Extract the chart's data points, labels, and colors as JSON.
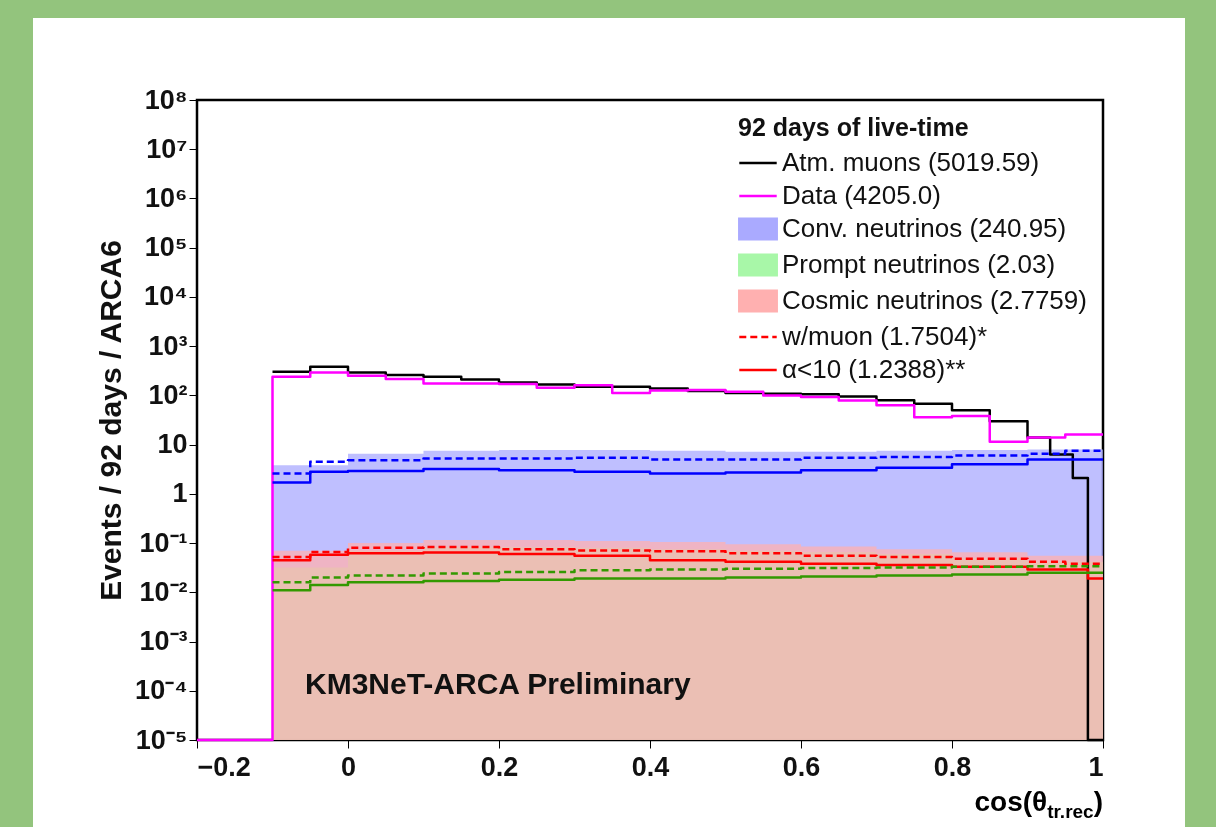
{
  "chart_data": {
    "type": "step",
    "ylabel": "Events /  92 days  / ARCA6",
    "xlabel": "cos(θ$_{tr.rec}$)",
    "legend_title": "92 days of live-time",
    "legend": "top right",
    "log": true,
    "xlim": [
      -0.2,
      1
    ],
    "xticks": [
      {
        "value": -0.2,
        "label": "−0.2"
      },
      0,
      0.2,
      0.4,
      0.6,
      0.8,
      1
    ],
    "ylim": [
      1e-05,
      100000000
    ],
    "yticks": [
      {
        "value": 1e-05,
        "label": "10⁻⁵"
      },
      {
        "value": 0.0001,
        "label": "10⁻⁴"
      },
      {
        "value": 0.001,
        "label": "10⁻³"
      },
      {
        "value": 0.01,
        "label": "10⁻²"
      },
      {
        "value": 0.1,
        "label": "10⁻¹"
      },
      1,
      10,
      {
        "value": 100,
        "label": "10²"
      },
      {
        "value": 1000,
        "label": "10³"
      },
      {
        "value": 10000,
        "label": "10⁴"
      },
      {
        "value": 100000,
        "label": "10⁵"
      },
      {
        "value": 1000000,
        "label": "10⁶"
      },
      {
        "value": 10000000,
        "label": "10⁷"
      },
      {
        "value": 100000000,
        "label": "10⁸"
      }
    ],
    "annotations": [
      "KM3NeT-ARCA Preliminary"
    ],
    "series": [
      {
        "name": "Atm. muons (5019.59)",
        "color": "#000000",
        "x": [
          -0.1,
          -0.05,
          0,
          0.05,
          0.1,
          0.15,
          0.2,
          0.25,
          0.3,
          0.35,
          0.4,
          0.45,
          0.5,
          0.55,
          0.6,
          0.65,
          0.7,
          0.75,
          0.8,
          0.85,
          0.9,
          0.93,
          0.96,
          0.98,
          1
        ],
        "values": [
          302,
          380,
          290,
          260,
          238,
          210,
          182,
          166,
          150,
          150,
          138,
          123,
          112,
          108,
          105,
          95,
          80,
          68,
          50,
          30,
          14,
          6.3,
          2.1,
          1e-05,
          1e-05
        ]
      },
      {
        "name": "Data (4205.0)",
        "color": "#ff00ff",
        "x": [
          -0.2,
          -0.1,
          -0.05,
          0,
          0.05,
          0.1,
          0.15,
          0.2,
          0.25,
          0.3,
          0.35,
          0.4,
          0.45,
          0.5,
          0.55,
          0.6,
          0.65,
          0.7,
          0.75,
          0.8,
          0.85,
          0.9,
          0.95,
          1
        ],
        "values": [
          1e-05,
          240,
          290,
          250,
          215,
          175,
          175,
          170,
          143,
          160,
          112,
          125,
          129,
          118,
          100,
          93,
          79,
          63,
          36,
          38,
          11.5,
          14,
          16,
          16
        ]
      },
      {
        "name": "Conv. neutrinos (240.95)",
        "type": "area",
        "color": "#aaaaff",
        "x": [
          -0.1,
          0,
          0.1,
          0.2,
          0.3,
          0.4,
          0.5,
          0.6,
          0.7,
          0.8,
          0.9,
          1
        ],
        "values": [
          3.8,
          6.5,
          7.5,
          7.8,
          7.8,
          7.5,
          7.2,
          7.2,
          7.5,
          7.8,
          8,
          8
        ]
      },
      {
        "name": "Prompt neutrinos (2.03)",
        "type": "area",
        "color": "#a8f7a8",
        "x": [
          -0.1,
          0,
          0.1,
          0.2,
          0.3,
          0.4,
          0.5,
          0.6,
          0.7,
          0.8,
          0.9,
          1
        ],
        "values": [
          0.032,
          0.07,
          0.083,
          0.083,
          0.08,
          0.075,
          0.07,
          0.066,
          0.06,
          0.05,
          0.042,
          0.042
        ]
      },
      {
        "name": "Cosmic neutrinos (2.7759)",
        "type": "area",
        "color": "#ffb0b0",
        "x": [
          -0.1,
          0,
          0.1,
          0.2,
          0.3,
          0.4,
          0.5,
          0.6,
          0.7,
          0.8,
          0.9,
          1
        ],
        "values": [
          0.07,
          0.1,
          0.115,
          0.115,
          0.11,
          0.105,
          0.095,
          0.085,
          0.075,
          0.065,
          0.055,
          0.055
        ]
      },
      {
        "name": "w/muon (1.7504)*",
        "color": "#ff0000",
        "line_style": "dashed",
        "x": [
          -0.1,
          -0.05,
          0,
          0.1,
          0.2,
          0.3,
          0.4,
          0.5,
          0.6,
          0.7,
          0.8,
          0.9,
          0.95,
          1
        ],
        "values": [
          0.052,
          0.066,
          0.08,
          0.083,
          0.075,
          0.071,
          0.068,
          0.062,
          0.055,
          0.052,
          0.048,
          0.042,
          0.038,
          0.038
        ]
      },
      {
        "name": "α<10 (1.2388)**",
        "color": "#ff0000",
        "line_style": "solid",
        "x": [
          -0.1,
          -0.05,
          0,
          0.1,
          0.2,
          0.3,
          0.4,
          0.5,
          0.6,
          0.7,
          0.8,
          0.9,
          0.98,
          1
        ],
        "values": [
          0.045,
          0.058,
          0.062,
          0.064,
          0.06,
          0.055,
          0.045,
          0.042,
          0.038,
          0.036,
          0.033,
          0.029,
          0.019,
          0.019
        ]
      },
      {
        "color": "#0000ff",
        "line_style": "dashed",
        "x": [
          -0.1,
          -0.05,
          0,
          0.1,
          0.2,
          0.3,
          0.4,
          0.5,
          0.6,
          0.7,
          0.8,
          0.9,
          0.95,
          1
        ],
        "values": [
          2.6,
          4.5,
          4.8,
          5.2,
          5.2,
          5.4,
          5,
          5,
          5.4,
          5.6,
          6,
          6.5,
          7.5,
          7.5
        ]
      },
      {
        "color": "#0000ff",
        "line_style": "solid",
        "x": [
          -0.1,
          -0.05,
          0,
          0.1,
          0.2,
          0.3,
          0.4,
          0.5,
          0.6,
          0.7,
          0.8,
          0.9,
          1
        ],
        "values": [
          1.7,
          2.8,
          2.9,
          3.2,
          3,
          2.8,
          2.6,
          2.7,
          3,
          3.4,
          4,
          5,
          5
        ]
      },
      {
        "color": "#339900",
        "line_style": "dashed",
        "x": [
          -0.1,
          -0.05,
          0,
          0.1,
          0.2,
          0.3,
          0.4,
          0.5,
          0.6,
          0.7,
          0.8,
          0.9,
          1
        ],
        "values": [
          0.016,
          0.02,
          0.022,
          0.024,
          0.026,
          0.028,
          0.029,
          0.03,
          0.031,
          0.032,
          0.033,
          0.034,
          0.034
        ]
      },
      {
        "color": "#339900",
        "line_style": "solid",
        "x": [
          -0.1,
          -0.05,
          0,
          0.1,
          0.2,
          0.3,
          0.4,
          0.5,
          0.6,
          0.7,
          0.8,
          0.9,
          1
        ],
        "values": [
          0.011,
          0.014,
          0.016,
          0.017,
          0.018,
          0.019,
          0.019,
          0.02,
          0.021,
          0.022,
          0.023,
          0.025,
          0.025
        ]
      }
    ]
  }
}
